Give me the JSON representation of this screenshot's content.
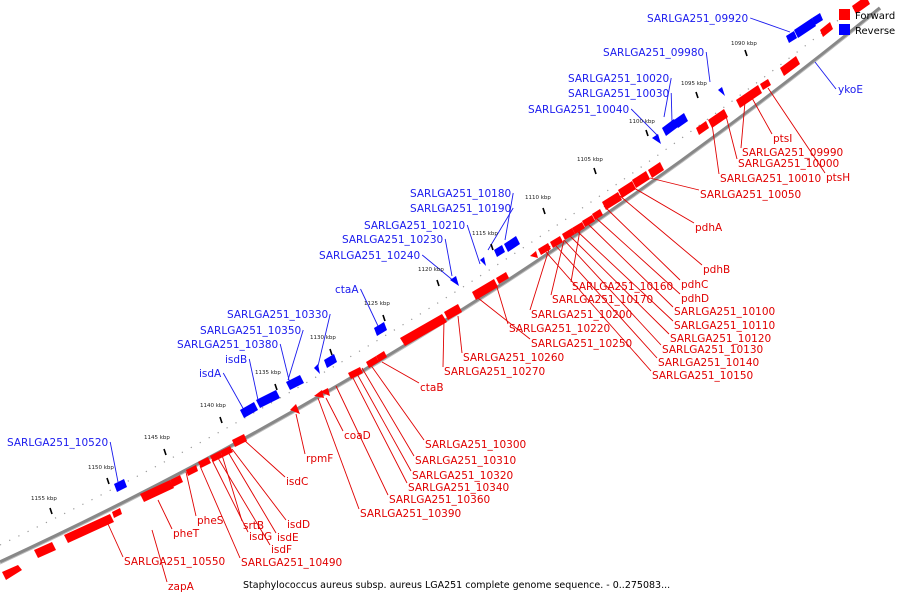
{
  "caption": "Staphylococcus aureus subsp. aureus LGA251 complete genome sequence. - 0..275083...",
  "legend": [
    {
      "label": "Forward",
      "color": "#ff0000"
    },
    {
      "label": "Reverse",
      "color": "#0000ff"
    }
  ],
  "colors": {
    "forward": "#ff0000",
    "reverse": "#0000ff",
    "backbone": "#888888"
  },
  "ticks": [
    {
      "label": "1090 kbp"
    },
    {
      "label": "1095 kbp"
    },
    {
      "label": "1100 kbp"
    },
    {
      "label": "1105 kbp"
    },
    {
      "label": "1110 kbp"
    },
    {
      "label": "1115 kbp"
    },
    {
      "label": "1120 kbp"
    },
    {
      "label": "1125 kbp"
    },
    {
      "label": "1130 kbp"
    },
    {
      "label": "1135 kbp"
    },
    {
      "label": "1140 kbp"
    },
    {
      "label": "1145 kbp"
    },
    {
      "label": "1150 kbp"
    },
    {
      "label": "1155 kbp"
    }
  ],
  "reverse_labels": [
    "SARLGA251_09920",
    "ykoE",
    "SARLGA251_09980",
    "SARLGA251_10020",
    "SARLGA251_10030",
    "SARLGA251_10040",
    "SARLGA251_10180",
    "SARLGA251_10190",
    "SARLGA251_10210",
    "SARLGA251_10230",
    "SARLGA251_10240",
    "ctaA",
    "SARLGA251_10330",
    "SARLGA251_10350",
    "SARLGA251_10380",
    "isdB",
    "isdA",
    "SARLGA251_10520"
  ],
  "forward_labels": [
    "ptsI",
    "SARLGA251_09990",
    "SARLGA251_10000",
    "ptsH",
    "SARLGA251_10010",
    "SARLGA251_10050",
    "pdhA",
    "pdhB",
    "pdhC",
    "SARLGA251_10160",
    "pdhD",
    "SARLGA251_10170",
    "SARLGA251_10100",
    "SARLGA251_10200",
    "SARLGA251_10110",
    "SARLGA251_10220",
    "SARLGA251_10120",
    "SARLGA251_10250",
    "SARLGA251_10130",
    "SARLGA251_10140",
    "SARLGA251_10260",
    "SARLGA251_10150",
    "SARLGA251_10270",
    "ctaB",
    "coaD",
    "SARLGA251_10300",
    "rpmF",
    "SARLGA251_10310",
    "SARLGA251_10320",
    "SARLGA251_10340",
    "isdC",
    "SARLGA251_10360",
    "SARLGA251_10390",
    "pheS",
    "srtB",
    "isdD",
    "pheT",
    "isdG",
    "isdE",
    "isdF",
    "SARLGA251_10490",
    "SARLGA251_10550",
    "zapA"
  ]
}
